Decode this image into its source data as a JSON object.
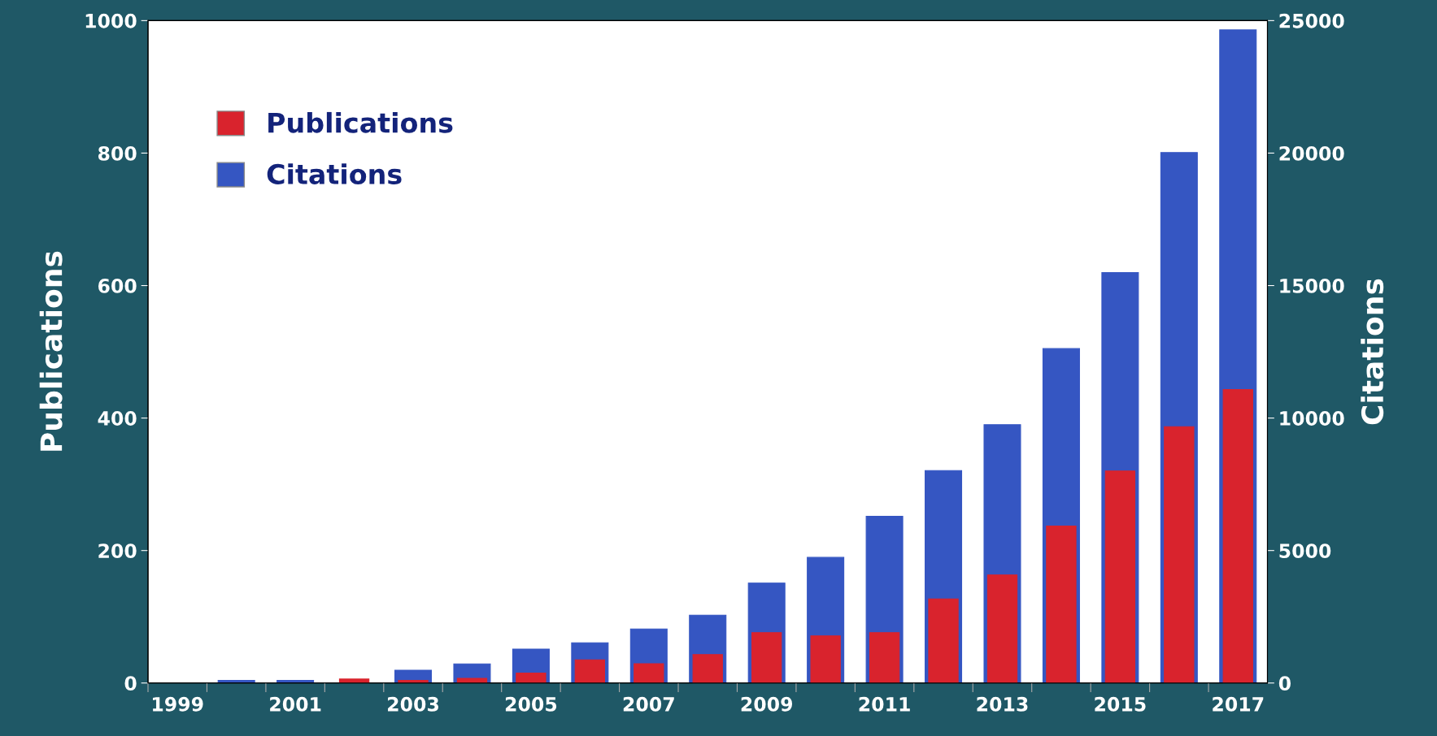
{
  "chart_data": {
    "type": "bar",
    "categories": [
      "1999",
      null,
      "2001",
      null,
      "2003",
      null,
      "2005",
      null,
      "2007",
      null,
      "2009",
      null,
      "2011",
      null,
      "2013",
      null,
      "2015",
      null,
      "2017"
    ],
    "series": [
      {
        "name": "Citations",
        "axis": "y2",
        "color": "#3556c2",
        "values": [
          null,
          100,
          100,
          null,
          480,
          720,
          1280,
          1520,
          2040,
          2560,
          3770,
          4740,
          6290,
          8020,
          9750,
          12620,
          15490,
          20020,
          24650
        ]
      },
      {
        "name": "Publications",
        "axis": "y",
        "color": "#d9232d",
        "values": [
          null,
          null,
          null,
          6,
          4,
          7,
          15,
          35,
          29,
          43,
          76,
          71,
          76,
          127,
          163,
          237,
          320,
          387,
          443
        ]
      }
    ],
    "ylabel": "Publications",
    "y2label": "Citations",
    "ylim": [
      0,
      1000
    ],
    "yticks": [
      0,
      200,
      400,
      600,
      800,
      1000
    ],
    "y2lim": [
      0,
      25000
    ],
    "y2ticks": [
      0,
      5000,
      10000,
      15000,
      20000,
      25000
    ],
    "grid": false,
    "legend": "top left"
  }
}
